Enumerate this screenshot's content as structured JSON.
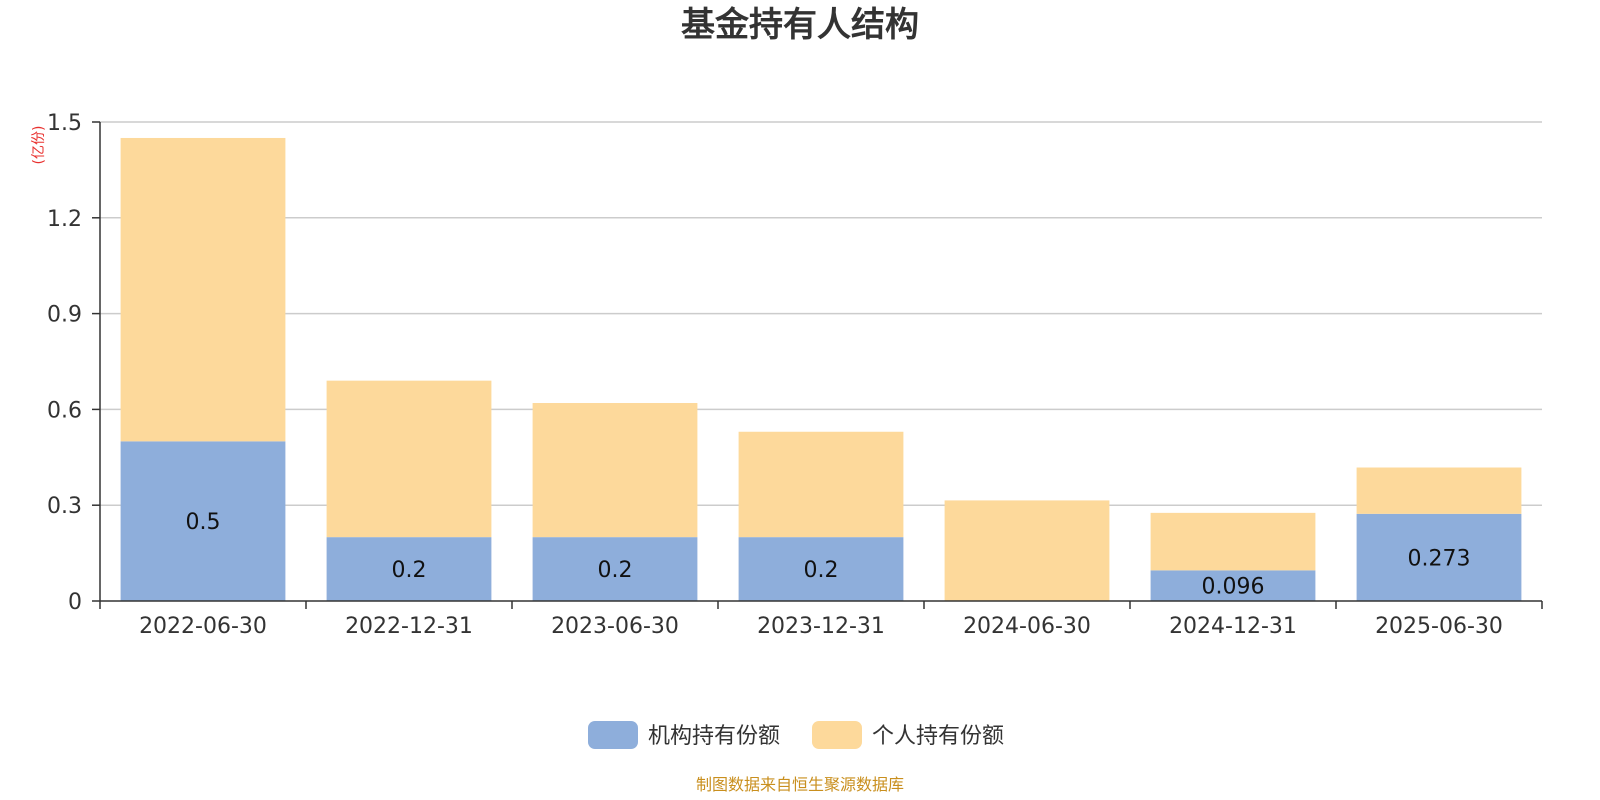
{
  "chart_data": {
    "type": "bar",
    "stacked": true,
    "title": "基金持有人结构",
    "ylabel": "(亿份)",
    "xlabel": "",
    "categories": [
      "2022-06-30",
      "2022-12-31",
      "2023-06-30",
      "2023-12-31",
      "2024-06-30",
      "2024-12-31",
      "2025-06-30"
    ],
    "series": [
      {
        "name": "机构持有份额",
        "color": "#8eaedb",
        "values": [
          0.5,
          0.2,
          0.2,
          0.2,
          0,
          0.096,
          0.273
        ],
        "labels": [
          "0.5",
          "0.2",
          "0.2",
          "0.2",
          "",
          "0.096",
          "0.273"
        ]
      },
      {
        "name": "个人持有份额",
        "color": "#fdd99b",
        "values": [
          0.95,
          0.49,
          0.42,
          0.33,
          0.315,
          0.18,
          0.145
        ],
        "labels": [
          "",
          "",
          "",
          "",
          "",
          "",
          ""
        ]
      }
    ],
    "ylim": [
      0,
      1.5
    ],
    "yticks": [
      "0",
      "0.3",
      "0.6",
      "0.9",
      "1.2",
      "1.5"
    ],
    "grid": true,
    "legend_position": "bottom-center",
    "source": "制图数据来自恒生聚源数据库"
  }
}
